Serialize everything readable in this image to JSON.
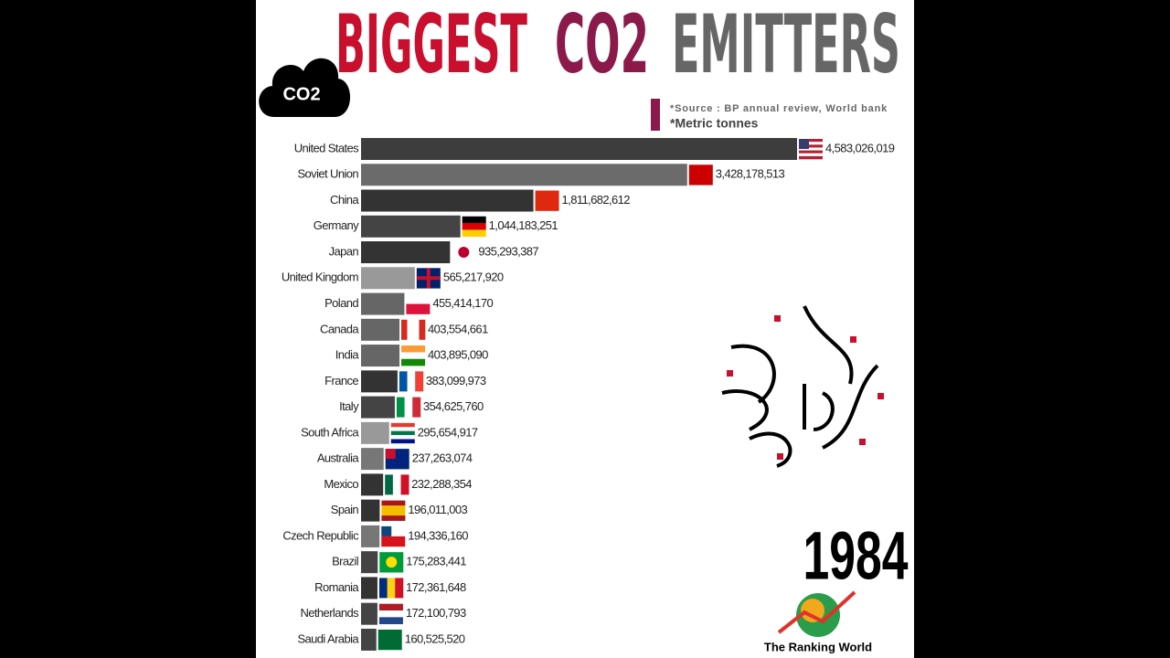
{
  "title_parts": [
    "BIGGEST",
    "CO2",
    "EMITTERS"
  ],
  "icon_label": "CO2",
  "source": "*Source : BP annual review, World bank",
  "unit_note": "*Metric tonnes",
  "year": "1984",
  "brand": "The Ranking World",
  "chart_data": {
    "type": "bar",
    "orientation": "horizontal",
    "categories": [
      "United States",
      "Soviet Union",
      "China",
      "Germany",
      "Japan",
      "United Kingdom",
      "Poland",
      "Canada",
      "India",
      "France",
      "Italy",
      "South Africa",
      "Australia",
      "Mexico",
      "Spain",
      "Czech Republic",
      "Brazil",
      "Romania",
      "Netherlands",
      "Saudi Arabia"
    ],
    "values": [
      4583026019,
      3428178513,
      1811682612,
      1044183251,
      935293387,
      565217920,
      455414170,
      403554661,
      403895090,
      383099973,
      354625760,
      295654917,
      237263074,
      232288354,
      196011003,
      194336160,
      175283441,
      172361648,
      172100793,
      160525520
    ],
    "value_labels": [
      "4,583,026,019",
      "3,428,178,513",
      "1,811,682,612",
      "1,044,183,251",
      "935,293,387",
      "565,217,920",
      "455,414,170",
      "403,554,661",
      "403,895,090",
      "383,099,973",
      "354,625,760",
      "295,654,917",
      "237,263,074",
      "232,288,354",
      "196,011,003",
      "194,336,160",
      "175,283,441",
      "172,361,648",
      "172,100,793",
      "160,525,520"
    ],
    "colors": [
      "#3d3d3d",
      "#6b6b6b",
      "#333333",
      "#444444",
      "#333333",
      "#999999",
      "#666666",
      "#666666",
      "#666666",
      "#333333",
      "#444444",
      "#999999",
      "#777777",
      "#333333",
      "#333333",
      "#777777",
      "#444444",
      "#333333",
      "#444444",
      "#444444"
    ]
  }
}
